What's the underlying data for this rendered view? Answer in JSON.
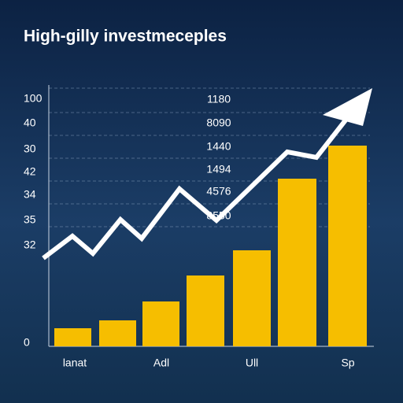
{
  "title": "High-gilly investmeceples",
  "y_labels": [
    "100",
    "40",
    "30",
    "42",
    "34",
    "35",
    "32",
    "0"
  ],
  "center_labels": [
    "1180",
    "8090",
    "1440",
    "1494",
    "4576",
    "8550"
  ],
  "x_labels": [
    "lanat",
    "Adl",
    "Ull",
    "Sp"
  ]
}
